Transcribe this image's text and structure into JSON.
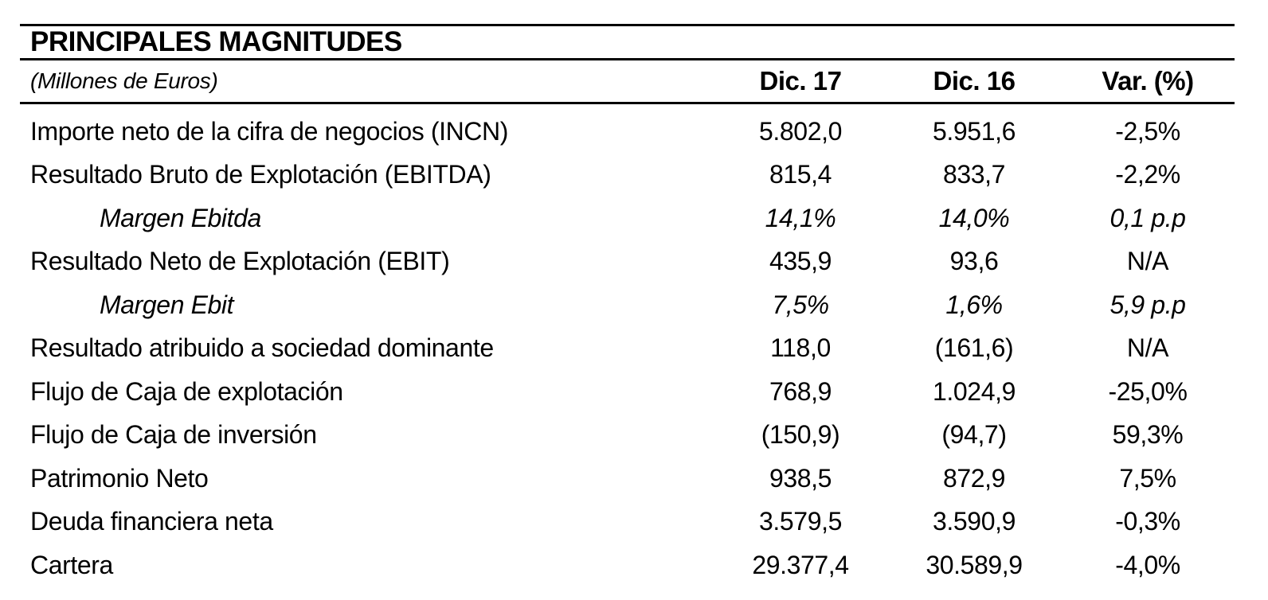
{
  "colors": {
    "text": "#000000",
    "rule": "#000000",
    "background": "#ffffff"
  },
  "table": {
    "title": "PRINCIPALES MAGNITUDES",
    "unit_note": "(Millones de Euros)",
    "columns": [
      "Dic. 17",
      "Dic. 16",
      "Var. (%)"
    ],
    "rows": [
      {
        "label": "Importe neto de la cifra de negocios (INCN)",
        "dic17": "5.802,0",
        "dic16": "5.951,6",
        "var": "-2,5%",
        "style": "normal"
      },
      {
        "label": "Resultado Bruto de Explotación (EBITDA)",
        "dic17": "815,4",
        "dic16": "833,7",
        "var": "-2,2%",
        "style": "normal"
      },
      {
        "label": "Margen Ebitda",
        "dic17": "14,1%",
        "dic16": "14,0%",
        "var": "0,1 p.p",
        "style": "italic-indent"
      },
      {
        "label": "Resultado Neto de Explotación (EBIT)",
        "dic17": "435,9",
        "dic16": "93,6",
        "var": "N/A",
        "style": "normal"
      },
      {
        "label": "Margen Ebit",
        "dic17": "7,5%",
        "dic16": "1,6%",
        "var": "5,9 p.p",
        "style": "italic-indent"
      },
      {
        "label": "Resultado atribuido a sociedad dominante",
        "dic17": "118,0",
        "dic16": "(161,6)",
        "var": "N/A",
        "style": "normal"
      },
      {
        "label": "Flujo de Caja de explotación",
        "dic17": "768,9",
        "dic16": "1.024,9",
        "var": "-25,0%",
        "style": "normal"
      },
      {
        "label": "Flujo de Caja de inversión",
        "dic17": "(150,9)",
        "dic16": "(94,7)",
        "var": "59,3%",
        "style": "normal"
      },
      {
        "label": "Patrimonio Neto",
        "dic17": "938,5",
        "dic16": "872,9",
        "var": "7,5%",
        "style": "normal"
      },
      {
        "label": "Deuda financiera neta",
        "dic17": "3.579,5",
        "dic16": "3.590,9",
        "var": "-0,3%",
        "style": "normal"
      },
      {
        "label": "Cartera",
        "dic17": "29.377,4",
        "dic16": "30.589,9",
        "var": "-4,0%",
        "style": "normal"
      }
    ]
  }
}
